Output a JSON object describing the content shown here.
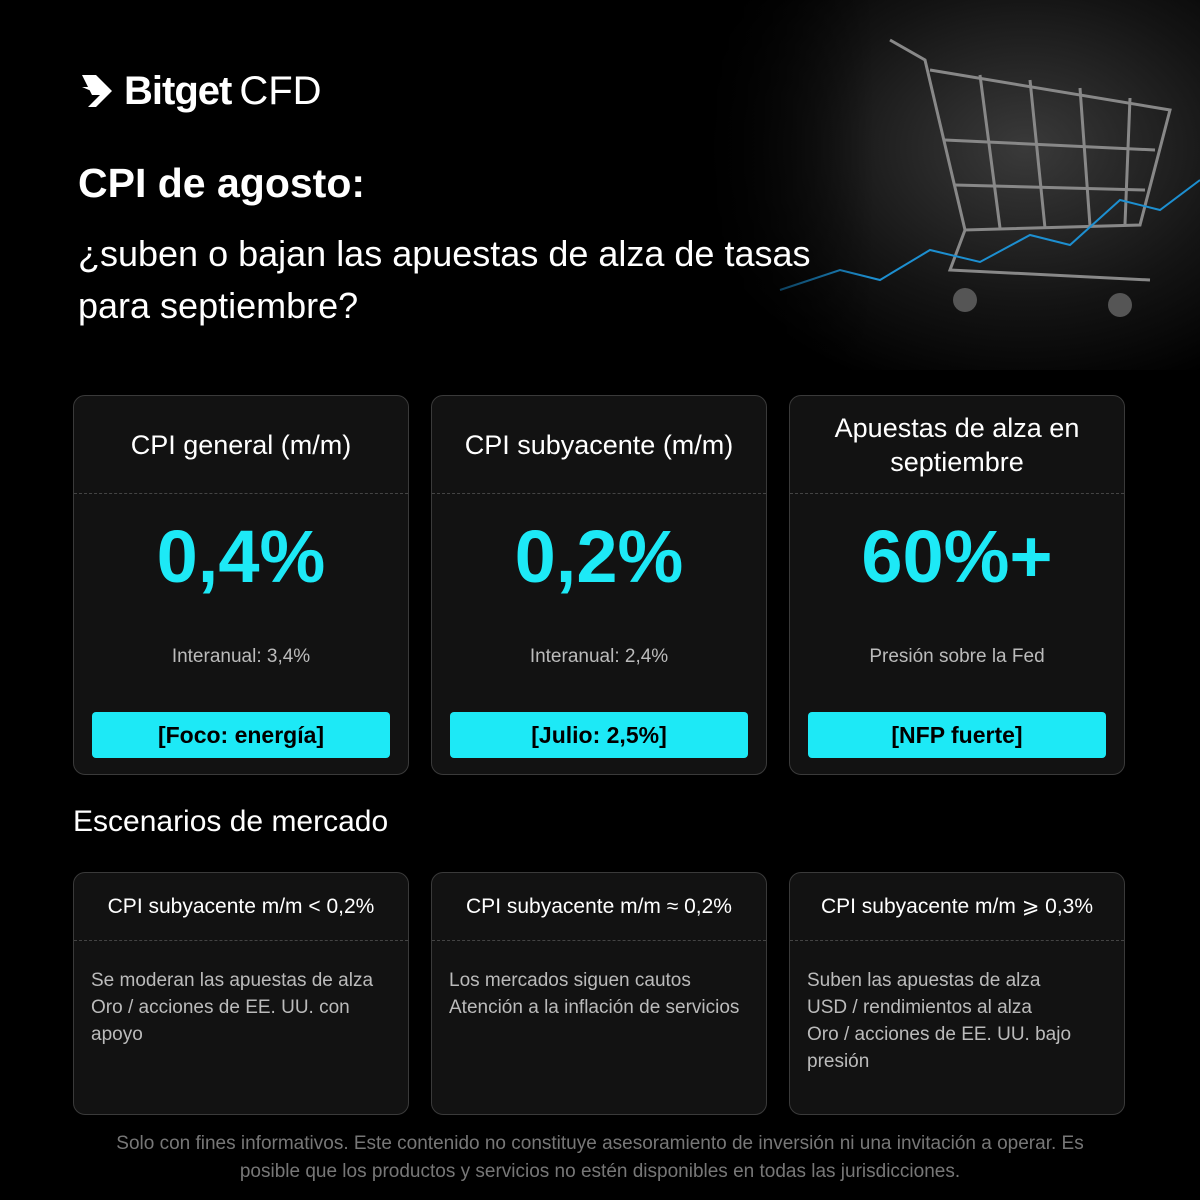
{
  "logo": {
    "brand": "Bitget",
    "product": "CFD"
  },
  "header": {
    "title": "CPI de agosto:",
    "subtitle_lines": [
      "¿suben o bajan las apuestas de alza de tasas",
      "para septiembre?"
    ]
  },
  "cards": [
    {
      "title_lines": [
        "CPI general (m/m)"
      ],
      "value": "0,4%",
      "note": "Interanual: 3,4%",
      "tag": "[Foco: energía]"
    },
    {
      "title_lines": [
        "CPI subyacente (m/m)"
      ],
      "value": "0,2%",
      "note": "Interanual: 2,4%",
      "tag": "[Julio: 2,5%]"
    },
    {
      "title_lines": [
        "Apuestas de alza en",
        "septiembre"
      ],
      "value": "60%+",
      "note": "Presión sobre la Fed",
      "tag": "[NFP fuerte]"
    }
  ],
  "scenarios": {
    "title": "Escenarios de mercado",
    "items": [
      {
        "condition": "CPI subyacente m/m < 0,2%",
        "lines": [
          "Se moderan las apuestas de alza",
          "Oro / acciones de EE. UU. con",
          "apoyo"
        ]
      },
      {
        "condition": "CPI subyacente m/m ≈ 0,2%",
        "lines": [
          "Los mercados siguen cautos",
          "Atención a la inflación de servicios"
        ]
      },
      {
        "condition": "CPI subyacente m/m ⩾ 0,3%",
        "lines": [
          "Suben las apuestas de alza",
          "USD / rendimientos al alza",
          "Oro / acciones de EE. UU. bajo",
          "presión"
        ]
      }
    ]
  },
  "footer": {
    "lines": [
      "Solo con fines informativos. Este contenido no constituye asesoramiento de inversión ni una invitación a operar. Es",
      "posible que los productos y servicios no estén disponibles en todas las jurisdicciones."
    ]
  }
}
